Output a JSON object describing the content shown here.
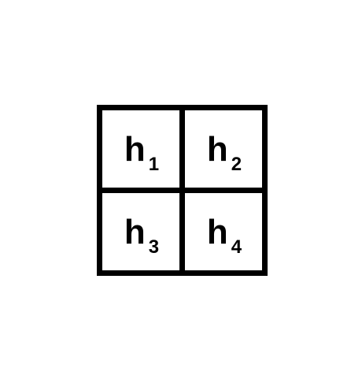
{
  "grid": {
    "cells": [
      {
        "base": "h",
        "sub": "1"
      },
      {
        "base": "h",
        "sub": "2"
      },
      {
        "base": "h",
        "sub": "3"
      },
      {
        "base": "h",
        "sub": "4"
      }
    ]
  },
  "colors": {
    "line": "#000000",
    "background": "#ffffff"
  }
}
